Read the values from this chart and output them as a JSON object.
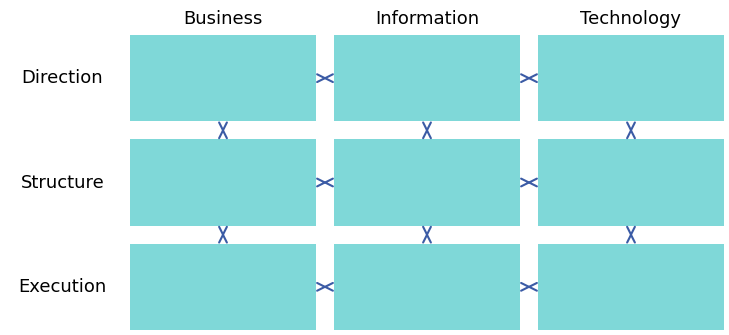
{
  "columns": [
    "Business",
    "Information",
    "Technology"
  ],
  "rows": [
    "Direction",
    "Structure",
    "Execution"
  ],
  "box_color": "#7FD8D8",
  "box_edge_color": "#7FD8D8",
  "arrow_color": "#3B5BA5",
  "col_header_fontsize": 13,
  "row_label_fontsize": 13,
  "background_color": "#ffffff",
  "fig_width": 7.29,
  "fig_height": 3.35,
  "dpi": 100
}
